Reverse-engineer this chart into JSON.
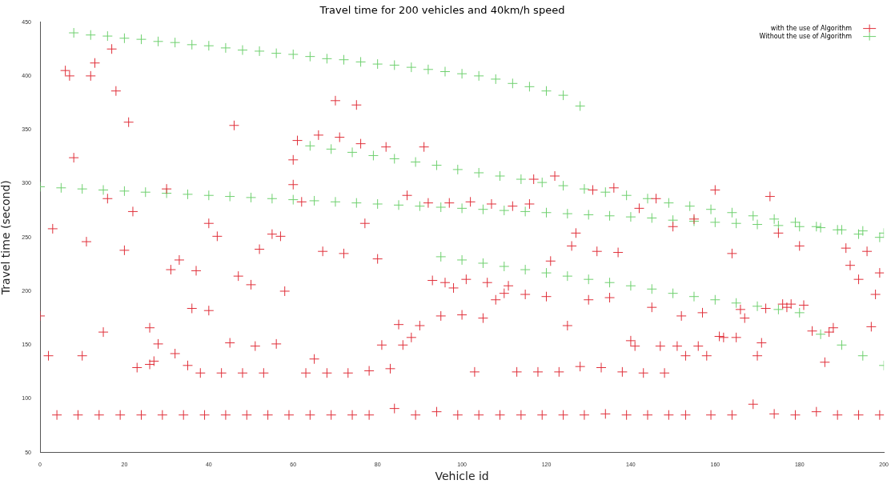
{
  "chart_data": {
    "type": "scatter",
    "title": "Travel time for 200 vehicles and 40km/h speed",
    "xlabel": "Vehicle id",
    "ylabel": "Travel time (second)",
    "xlim": [
      0,
      200
    ],
    "xticks": [
      0,
      20,
      40,
      60,
      80,
      100,
      120,
      140,
      160,
      180,
      200
    ],
    "ylim": [
      50,
      450
    ],
    "yticks": [
      50,
      100,
      150,
      200,
      250,
      300,
      350,
      400,
      450
    ],
    "marker": "cross",
    "grid": false,
    "legend": "top right",
    "series": [
      {
        "name": "with the use of Algorithm",
        "color": "#e0303a",
        "x": [
          0,
          2,
          3,
          6,
          7,
          8,
          10,
          11,
          12,
          13,
          15,
          16,
          17,
          18,
          20,
          21,
          22,
          23,
          26,
          26,
          27,
          28,
          30,
          31,
          32,
          33,
          35,
          36,
          37,
          38,
          40,
          40,
          42,
          43,
          45,
          46,
          47,
          48,
          50,
          51,
          52,
          53,
          55,
          56,
          57,
          58,
          60,
          60,
          61,
          62,
          63,
          65,
          66,
          67,
          68,
          70,
          71,
          72,
          73,
          75,
          76,
          77,
          78,
          80,
          81,
          82,
          83,
          85,
          86,
          87,
          88,
          90,
          91,
          92,
          93,
          95,
          96,
          97,
          98,
          100,
          101,
          102,
          103,
          105,
          106,
          107,
          108,
          110,
          111,
          112,
          113,
          115,
          116,
          117,
          118,
          120,
          121,
          122,
          123,
          125,
          126,
          127,
          128,
          130,
          131,
          132,
          133,
          135,
          136,
          137,
          138,
          140,
          141,
          142,
          143,
          145,
          146,
          147,
          148,
          150,
          151,
          152,
          153,
          155,
          156,
          157,
          158,
          160,
          161,
          162,
          164,
          165,
          166,
          167,
          170,
          171,
          172,
          173,
          175,
          176,
          177,
          178,
          180,
          181,
          183,
          186,
          187,
          188,
          191,
          192,
          194,
          196,
          197,
          198,
          199,
          4,
          9,
          14,
          19,
          24,
          29,
          34,
          39,
          44,
          49,
          54,
          59,
          64,
          69,
          74,
          78,
          84,
          89,
          94,
          99,
          104,
          109,
          114,
          119,
          124,
          129,
          134,
          139,
          144,
          149,
          153,
          159,
          164,
          169,
          174,
          179,
          184,
          189,
          194,
          199
        ],
        "values": [
          177,
          140,
          258,
          405,
          400,
          324,
          140,
          246,
          400,
          412,
          162,
          286,
          425,
          386,
          238,
          357,
          274,
          129,
          132,
          166,
          135,
          151,
          295,
          220,
          142,
          229,
          131,
          184,
          219,
          124,
          263,
          182,
          251,
          124,
          152,
          354,
          214,
          124,
          206,
          149,
          239,
          124,
          253,
          151,
          251,
          200,
          299,
          322,
          340,
          283,
          124,
          137,
          345,
          237,
          124,
          377,
          343,
          235,
          124,
          373,
          337,
          263,
          126,
          230,
          150,
          334,
          128,
          169,
          150,
          289,
          157,
          168,
          334,
          282,
          210,
          177,
          208,
          282,
          203,
          178,
          211,
          283,
          125,
          175,
          208,
          281,
          192,
          198,
          205,
          279,
          125,
          197,
          281,
          304,
          125,
          195,
          228,
          307,
          125,
          168,
          242,
          254,
          130,
          192,
          294,
          237,
          129,
          194,
          296,
          236,
          125,
          154,
          149,
          277,
          124,
          185,
          286,
          149,
          124,
          260,
          149,
          177,
          140,
          267,
          149,
          180,
          140,
          294,
          158,
          157,
          235,
          157,
          183,
          175,
          140,
          152,
          184,
          288,
          254,
          188,
          185,
          188,
          242,
          187,
          163,
          134,
          162,
          166,
          240,
          224,
          211,
          237,
          167,
          197,
          217,
          85,
          85,
          85,
          85,
          85,
          85,
          85,
          85,
          85,
          85,
          85,
          85,
          85,
          85,
          85,
          85,
          91,
          85,
          88,
          85,
          85,
          85,
          85,
          85,
          85,
          85,
          86,
          85,
          85,
          85,
          85,
          85,
          85,
          95,
          86,
          85,
          88,
          85,
          85,
          85
        ]
      },
      {
        "name": "Without the use of Algorithm",
        "color": "#6fd06f",
        "x": [
          8,
          12,
          16,
          20,
          24,
          28,
          32,
          36,
          40,
          44,
          48,
          52,
          56,
          60,
          64,
          68,
          72,
          76,
          80,
          84,
          88,
          92,
          96,
          100,
          104,
          108,
          112,
          116,
          120,
          124,
          128,
          0,
          5,
          10,
          15,
          20,
          25,
          30,
          35,
          40,
          45,
          50,
          55,
          60,
          65,
          70,
          75,
          80,
          85,
          90,
          95,
          100,
          105,
          110,
          115,
          120,
          125,
          130,
          135,
          140,
          145,
          150,
          155,
          160,
          165,
          170,
          175,
          180,
          185,
          190,
          195,
          200,
          64,
          69,
          74,
          79,
          84,
          89,
          94,
          99,
          104,
          109,
          114,
          119,
          124,
          129,
          134,
          139,
          144,
          149,
          154,
          159,
          164,
          169,
          174,
          179,
          184,
          189,
          194,
          199,
          95,
          100,
          105,
          110,
          115,
          120,
          125,
          130,
          135,
          140,
          145,
          150,
          155,
          160,
          165,
          170,
          175,
          180,
          185,
          190,
          195,
          200
        ],
        "values": [
          440,
          438,
          437,
          435,
          434,
          432,
          431,
          429,
          428,
          426,
          424,
          423,
          421,
          420,
          418,
          416,
          415,
          413,
          411,
          410,
          408,
          406,
          404,
          402,
          400,
          397,
          393,
          390,
          386,
          382,
          372,
          297,
          296,
          295,
          294,
          293,
          292,
          291,
          290,
          289,
          288,
          287,
          286,
          285,
          284,
          283,
          282,
          281,
          280,
          279,
          278,
          277,
          276,
          275,
          274,
          273,
          272,
          271,
          270,
          269,
          268,
          266,
          265,
          264,
          263,
          262,
          261,
          260,
          259,
          257,
          256,
          254,
          335,
          332,
          329,
          326,
          323,
          320,
          317,
          313,
          310,
          307,
          304,
          301,
          298,
          295,
          292,
          289,
          286,
          282,
          279,
          276,
          273,
          270,
          267,
          264,
          260,
          257,
          253,
          250,
          232,
          229,
          226,
          223,
          220,
          217,
          214,
          211,
          208,
          205,
          202,
          198,
          195,
          192,
          189,
          186,
          183,
          180,
          160,
          150,
          140,
          131
        ]
      }
    ]
  }
}
